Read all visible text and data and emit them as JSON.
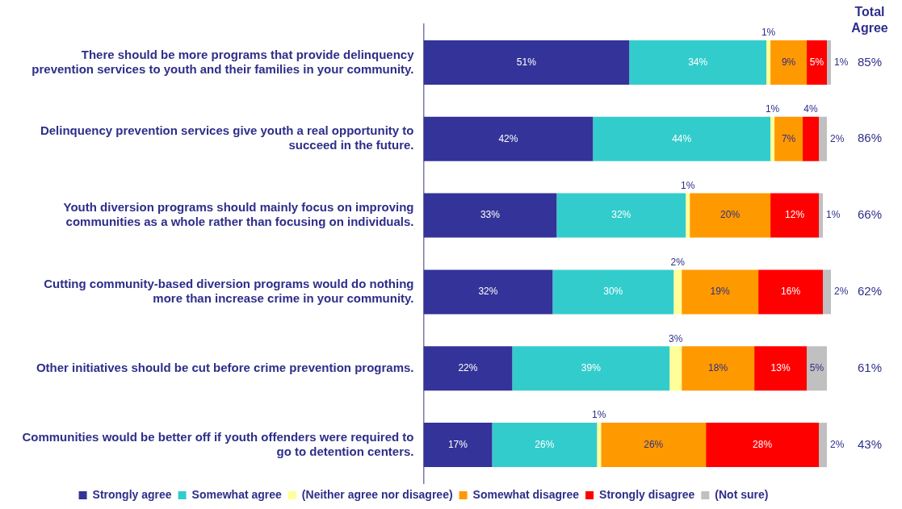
{
  "chart_data": {
    "type": "bar",
    "orientation": "horizontal",
    "stacked": true,
    "categories": [
      "There should be more programs that provide delinquency prevention services to youth and their families in your community.",
      "Delinquency prevention services give youth a real opportunity to succeed in the future.",
      "Youth diversion programs should mainly focus on improving communities as a whole rather than focusing on individuals.",
      "Cutting community-based diversion programs would do nothing more than increase crime in your community.",
      "Other initiatives should be cut before crime prevention programs.",
      "Communities would be better off if youth offenders were required to go to detention centers."
    ],
    "series": [
      {
        "name": "Strongly agree",
        "color": "#333399",
        "values": [
          51,
          42,
          33,
          32,
          22,
          17
        ],
        "value_labels": [
          "51%",
          "42%",
          "33%",
          "32%",
          "22%",
          "17%"
        ]
      },
      {
        "name": "Somewhat agree",
        "color": "#33cccc",
        "values": [
          34,
          44,
          32,
          30,
          39,
          26
        ],
        "value_labels": [
          "34%",
          "44%",
          "32%",
          "30%",
          "39%",
          "26%"
        ]
      },
      {
        "name": "(Neither agree nor disagree)",
        "color": "#ffff99",
        "values": [
          1,
          1,
          1,
          2,
          3,
          1
        ],
        "value_labels": [
          "1%",
          "1%",
          "1%",
          "2%",
          "3%",
          "1%"
        ]
      },
      {
        "name": "Somewhat disagree",
        "color": "#ff9900",
        "values": [
          9,
          7,
          20,
          19,
          18,
          26
        ],
        "value_labels": [
          "9%",
          "7%",
          "20%",
          "19%",
          "18%",
          "26%"
        ]
      },
      {
        "name": "Strongly disagree",
        "color": "#ff0000",
        "values": [
          5,
          4,
          12,
          16,
          13,
          28
        ],
        "value_labels": [
          "5%",
          "4%",
          "12%",
          "16%",
          "13%",
          "28%"
        ]
      },
      {
        "name": "(Not sure)",
        "color": "#c0c0c0",
        "values": [
          1,
          2,
          1,
          2,
          5,
          2
        ],
        "value_labels": [
          "1%",
          "2%",
          "1%",
          "2%",
          "5%",
          "2%"
        ]
      }
    ],
    "xlim": [
      0,
      101
    ],
    "tick_labels": "y",
    "grid": false,
    "legend": "bottom",
    "annotations": [
      "Total Agree",
      "85%",
      "86%",
      "66%",
      "62%",
      "61%",
      "43%"
    ]
  }
}
